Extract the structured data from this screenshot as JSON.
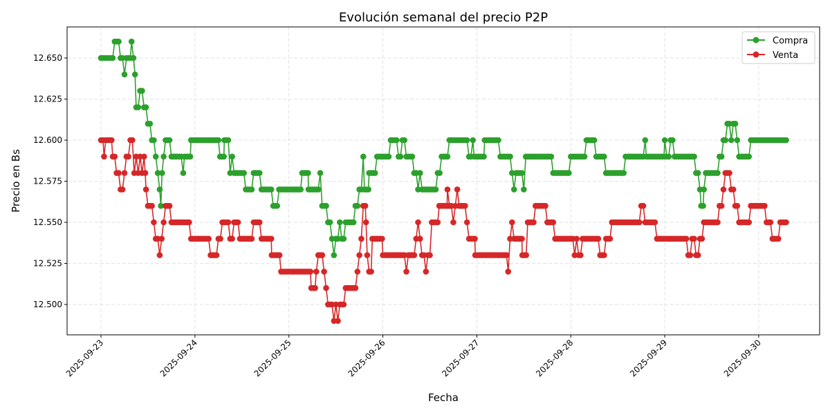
{
  "chart_data": {
    "type": "line",
    "title": "Evolución semanal del precio P2P",
    "xlabel": "Fecha",
    "ylabel": "Precio en Bs",
    "x_unit": "hours since 2025-09-23 00:00 (step values, held until next point)",
    "x_ticks": [
      "2025-09-23",
      "2025-09-24",
      "2025-09-25",
      "2025-09-26",
      "2025-09-27",
      "2025-09-28",
      "2025-09-29",
      "2025-09-30"
    ],
    "y_ticks": [
      "12.500",
      "12.525",
      "12.550",
      "12.575",
      "12.600",
      "12.625",
      "12.650"
    ],
    "ylim": [
      12.483,
      12.668
    ],
    "grid": true,
    "legend_position": "top-right",
    "series": [
      {
        "name": "Compra",
        "color": "#2ca02c",
        "points": [
          [
            0,
            12.65
          ],
          [
            3.5,
            12.66
          ],
          [
            5,
            12.65
          ],
          [
            6,
            12.64
          ],
          [
            6.5,
            12.65
          ],
          [
            7.8,
            12.66
          ],
          [
            8.3,
            12.65
          ],
          [
            8.7,
            12.64
          ],
          [
            9,
            12.62
          ],
          [
            10,
            12.63
          ],
          [
            11,
            12.62
          ],
          [
            12,
            12.61
          ],
          [
            13,
            12.6
          ],
          [
            14,
            12.59
          ],
          [
            14.5,
            12.58
          ],
          [
            15,
            12.57
          ],
          [
            15.3,
            12.56
          ],
          [
            15.6,
            12.58
          ],
          [
            16,
            12.59
          ],
          [
            16.5,
            12.6
          ],
          [
            18,
            12.59
          ],
          [
            21,
            12.58
          ],
          [
            21.3,
            12.59
          ],
          [
            23,
            12.6
          ],
          [
            30.4,
            12.59
          ],
          [
            31.5,
            12.6
          ],
          [
            33,
            12.58
          ],
          [
            33.5,
            12.59
          ],
          [
            34,
            12.58
          ],
          [
            37,
            12.57
          ],
          [
            39,
            12.58
          ],
          [
            41,
            12.57
          ],
          [
            44,
            12.56
          ],
          [
            45.5,
            12.57
          ],
          [
            51.4,
            12.58
          ],
          [
            53,
            12.57
          ],
          [
            56,
            12.58
          ],
          [
            56.5,
            12.56
          ],
          [
            58,
            12.55
          ],
          [
            59,
            12.54
          ],
          [
            59.5,
            12.53
          ],
          [
            60,
            12.54
          ],
          [
            61,
            12.55
          ],
          [
            61.5,
            12.54
          ],
          [
            62.5,
            12.55
          ],
          [
            65,
            12.56
          ],
          [
            66,
            12.57
          ],
          [
            67,
            12.59
          ],
          [
            67.3,
            12.57
          ],
          [
            68.5,
            12.58
          ],
          [
            70.5,
            12.59
          ],
          [
            74,
            12.6
          ],
          [
            76,
            12.59
          ],
          [
            77,
            12.6
          ],
          [
            78,
            12.59
          ],
          [
            80,
            12.58
          ],
          [
            81,
            12.57
          ],
          [
            81.5,
            12.58
          ],
          [
            82,
            12.57
          ],
          [
            86,
            12.58
          ],
          [
            87,
            12.59
          ],
          [
            89,
            12.6
          ],
          [
            94,
            12.59
          ],
          [
            95,
            12.6
          ],
          [
            95.3,
            12.59
          ],
          [
            98,
            12.6
          ],
          [
            102,
            12.59
          ],
          [
            105,
            12.58
          ],
          [
            105.5,
            12.57
          ],
          [
            106,
            12.58
          ],
          [
            108,
            12.57
          ],
          [
            108.5,
            12.59
          ],
          [
            115.5,
            12.58
          ],
          [
            120,
            12.59
          ],
          [
            124,
            12.6
          ],
          [
            126.5,
            12.59
          ],
          [
            129,
            12.58
          ],
          [
            134,
            12.59
          ],
          [
            139,
            12.6
          ],
          [
            139.3,
            12.59
          ],
          [
            144,
            12.6
          ],
          [
            144.5,
            12.59
          ],
          [
            145.5,
            12.6
          ],
          [
            146.5,
            12.59
          ],
          [
            152,
            12.58
          ],
          [
            153,
            12.57
          ],
          [
            153.3,
            12.56
          ],
          [
            154,
            12.57
          ],
          [
            154.5,
            12.58
          ],
          [
            158,
            12.59
          ],
          [
            159,
            12.6
          ],
          [
            160,
            12.61
          ],
          [
            161,
            12.6
          ],
          [
            161.5,
            12.61
          ],
          [
            162.5,
            12.6
          ],
          [
            163,
            12.59
          ],
          [
            166,
            12.6
          ],
          [
            175,
            12.6
          ]
        ]
      },
      {
        "name": "Venta",
        "color": "#d62728",
        "points": [
          [
            0,
            12.6
          ],
          [
            0.8,
            12.59
          ],
          [
            1.2,
            12.6
          ],
          [
            3,
            12.59
          ],
          [
            4,
            12.58
          ],
          [
            5,
            12.57
          ],
          [
            6,
            12.58
          ],
          [
            6.5,
            12.59
          ],
          [
            7.5,
            12.6
          ],
          [
            8.5,
            12.58
          ],
          [
            9,
            12.59
          ],
          [
            9.5,
            12.58
          ],
          [
            10,
            12.59
          ],
          [
            10.5,
            12.58
          ],
          [
            11,
            12.59
          ],
          [
            11.3,
            12.58
          ],
          [
            11.5,
            12.57
          ],
          [
            12,
            12.56
          ],
          [
            13.5,
            12.55
          ],
          [
            14,
            12.54
          ],
          [
            15,
            12.53
          ],
          [
            15.5,
            12.54
          ],
          [
            16,
            12.55
          ],
          [
            16.5,
            12.56
          ],
          [
            18,
            12.55
          ],
          [
            23,
            12.54
          ],
          [
            28,
            12.53
          ],
          [
            30,
            12.54
          ],
          [
            31,
            12.55
          ],
          [
            33,
            12.54
          ],
          [
            34,
            12.55
          ],
          [
            35.5,
            12.54
          ],
          [
            39,
            12.55
          ],
          [
            41,
            12.54
          ],
          [
            43.6,
            12.53
          ],
          [
            46,
            12.52
          ],
          [
            53.7,
            12.51
          ],
          [
            55,
            12.52
          ],
          [
            55.5,
            12.53
          ],
          [
            57,
            12.52
          ],
          [
            57.5,
            12.51
          ],
          [
            58,
            12.5
          ],
          [
            59.5,
            12.49
          ],
          [
            60,
            12.5
          ],
          [
            60.5,
            12.49
          ],
          [
            61,
            12.5
          ],
          [
            62.5,
            12.51
          ],
          [
            65.5,
            12.52
          ],
          [
            66,
            12.53
          ],
          [
            66.5,
            12.54
          ],
          [
            67,
            12.56
          ],
          [
            67.7,
            12.55
          ],
          [
            68,
            12.53
          ],
          [
            68.5,
            12.52
          ],
          [
            69.3,
            12.54
          ],
          [
            72,
            12.53
          ],
          [
            78,
            12.52
          ],
          [
            78.5,
            12.53
          ],
          [
            80.5,
            12.54
          ],
          [
            81,
            12.55
          ],
          [
            81.5,
            12.54
          ],
          [
            82,
            12.53
          ],
          [
            83,
            12.52
          ],
          [
            83.5,
            12.53
          ],
          [
            84.5,
            12.55
          ],
          [
            86.4,
            12.56
          ],
          [
            88.5,
            12.57
          ],
          [
            89,
            12.56
          ],
          [
            90,
            12.55
          ],
          [
            90.5,
            12.56
          ],
          [
            91,
            12.57
          ],
          [
            91.5,
            12.56
          ],
          [
            93.5,
            12.55
          ],
          [
            94,
            12.54
          ],
          [
            95.6,
            12.53
          ],
          [
            104,
            12.52
          ],
          [
            104.5,
            12.54
          ],
          [
            105,
            12.55
          ],
          [
            105.5,
            12.54
          ],
          [
            107.6,
            12.53
          ],
          [
            109,
            12.55
          ],
          [
            111,
            12.56
          ],
          [
            114,
            12.55
          ],
          [
            116,
            12.54
          ],
          [
            121,
            12.53
          ],
          [
            121.5,
            12.54
          ],
          [
            122,
            12.53
          ],
          [
            123,
            12.54
          ],
          [
            127.5,
            12.53
          ],
          [
            129,
            12.54
          ],
          [
            130.5,
            12.55
          ],
          [
            138,
            12.56
          ],
          [
            139,
            12.55
          ],
          [
            142,
            12.54
          ],
          [
            150,
            12.53
          ],
          [
            151,
            12.54
          ],
          [
            152,
            12.53
          ],
          [
            153,
            12.54
          ],
          [
            154,
            12.55
          ],
          [
            158,
            12.56
          ],
          [
            159,
            12.57
          ],
          [
            159.5,
            12.58
          ],
          [
            161,
            12.57
          ],
          [
            162,
            12.56
          ],
          [
            163,
            12.55
          ],
          [
            166,
            12.56
          ],
          [
            170,
            12.55
          ],
          [
            171.5,
            12.54
          ],
          [
            173.5,
            12.55
          ],
          [
            175,
            12.55
          ]
        ]
      }
    ]
  }
}
